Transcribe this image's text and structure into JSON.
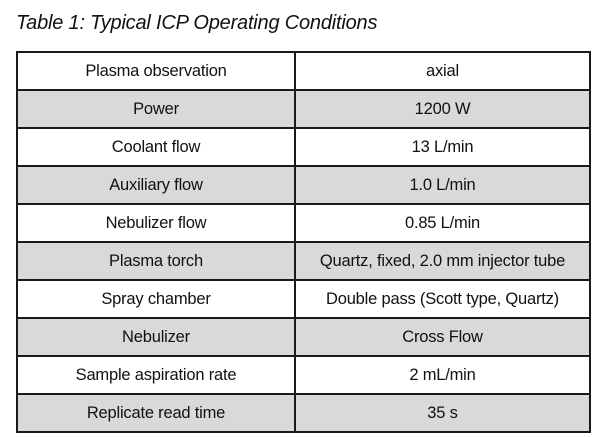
{
  "caption": "Table 1: Typical ICP Operating Conditions",
  "table": {
    "rows": [
      {
        "label": "Plasma observation",
        "value": "axial"
      },
      {
        "label": "Power",
        "value": "1200 W"
      },
      {
        "label": "Coolant flow",
        "value": "13 L/min"
      },
      {
        "label": "Auxiliary flow",
        "value": "1.0 L/min"
      },
      {
        "label": "Nebulizer flow",
        "value": "0.85 L/min"
      },
      {
        "label": "Plasma torch",
        "value": "Quartz, fixed, 2.0 mm injector tube"
      },
      {
        "label": "Spray chamber",
        "value": "Double pass (Scott type, Quartz)"
      },
      {
        "label": "Nebulizer",
        "value": "Cross Flow"
      },
      {
        "label": "Sample aspiration rate",
        "value": "2 mL/min"
      },
      {
        "label": "Replicate read time",
        "value": "35 s"
      }
    ],
    "shaded_row_color": "#d9d9d9",
    "plain_row_color": "#ffffff"
  }
}
